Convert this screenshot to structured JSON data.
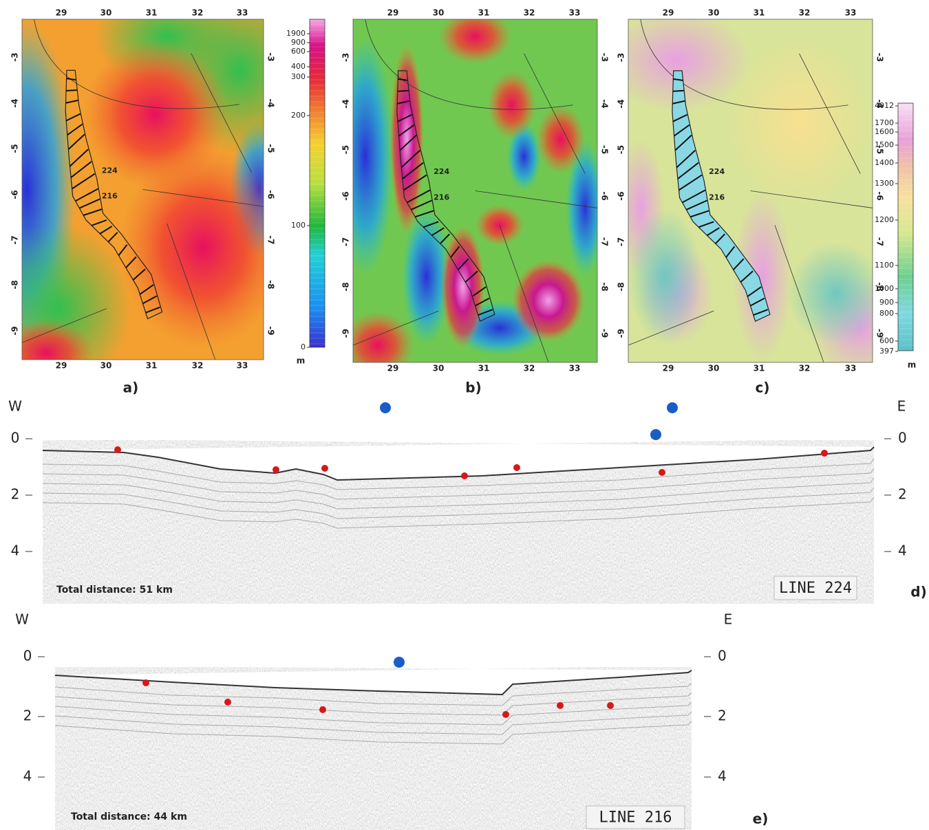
{
  "panels": [
    {
      "label": "a)",
      "lon_ticks": [
        29,
        30,
        31,
        32,
        33
      ],
      "lat_ticks": [
        -3,
        -4,
        -5,
        -6,
        -7,
        -8,
        -9
      ],
      "line_labels": [
        "224",
        "216"
      ],
      "colorbar": {
        "ticks": [
          1900,
          900,
          600,
          400,
          300,
          200,
          100,
          0
        ],
        "unit": "m"
      }
    },
    {
      "label": "b)",
      "lon_ticks": [
        29,
        30,
        31,
        32,
        33
      ],
      "lat_ticks": [
        -3,
        -4,
        -5,
        -6,
        -7,
        -8,
        -9
      ],
      "line_labels": [
        "224",
        "216"
      ]
    },
    {
      "label": "c)",
      "lon_ticks": [
        29,
        30,
        31,
        32,
        33
      ],
      "lat_ticks": [
        -3,
        -4,
        -5,
        -6,
        -7,
        -8,
        -9
      ],
      "line_labels": [
        "224",
        "216"
      ],
      "colorbar": {
        "ticks": [
          4012,
          1700,
          1600,
          1500,
          1400,
          1300,
          1200,
          1100,
          1000,
          900,
          800,
          600,
          397
        ],
        "unit": "m"
      }
    }
  ],
  "profiles": [
    {
      "label": "d)",
      "west": "W",
      "east": "E",
      "depth_ticks": [
        0,
        2,
        4
      ],
      "distance": "Total distance: 51 km",
      "line": "LINE 224"
    },
    {
      "label": "e)",
      "west": "W",
      "east": "E",
      "depth_ticks": [
        0,
        2,
        4
      ],
      "distance": "Total distance: 44 km",
      "line": "LINE 216"
    }
  ]
}
